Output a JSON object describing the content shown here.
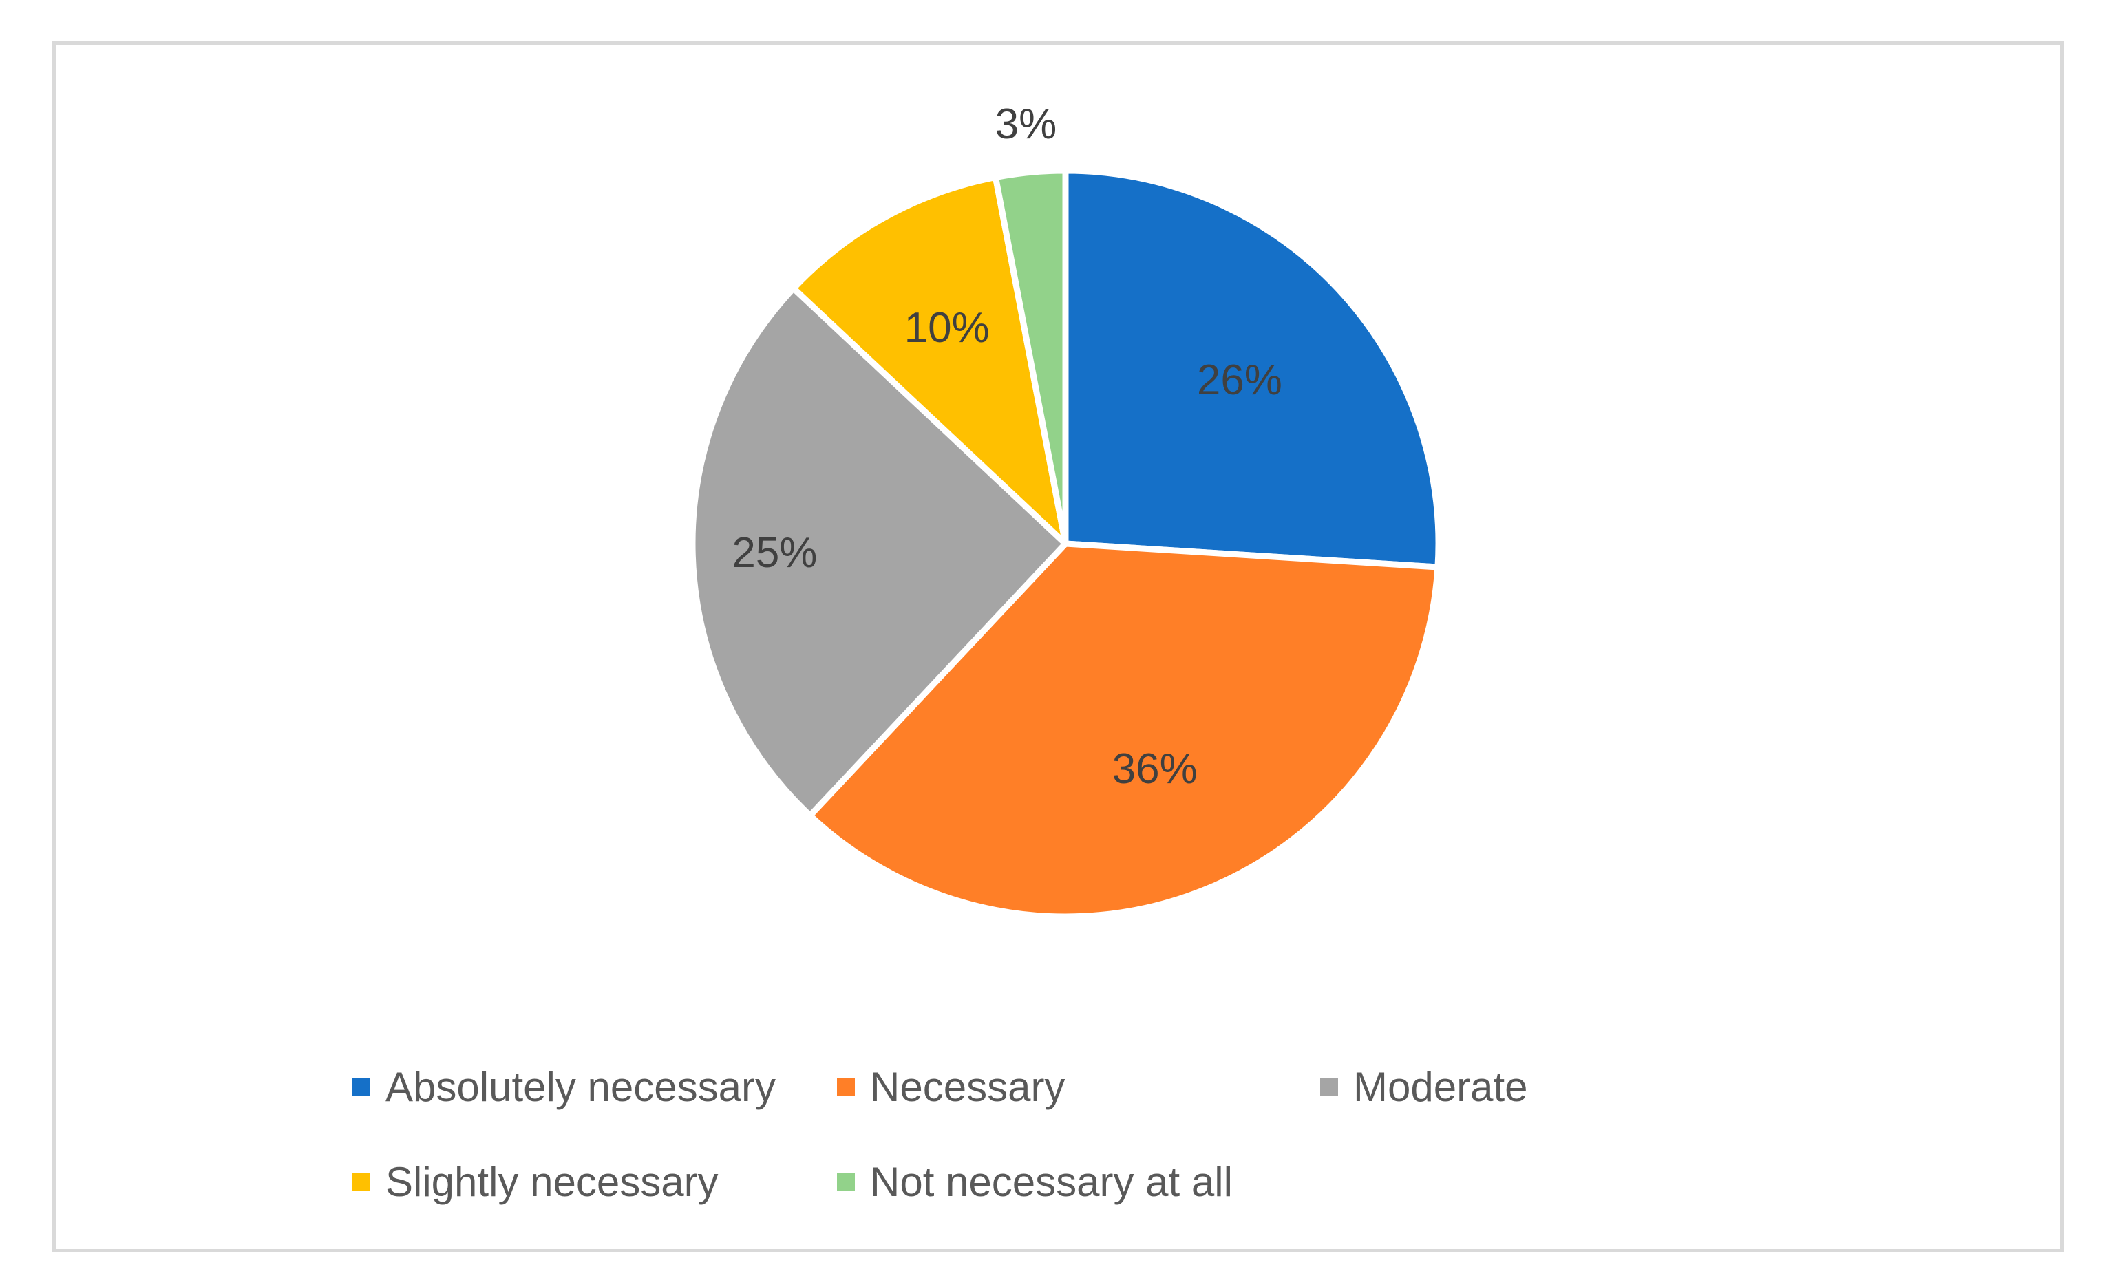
{
  "chart_data": {
    "type": "pie",
    "title": "",
    "slices": [
      {
        "name": "Absolutely necessary",
        "value": 26,
        "label": "26%",
        "color": "#1570C8"
      },
      {
        "name": "Necessary",
        "value": 36,
        "label": "36%",
        "color": "#FF7F27"
      },
      {
        "name": "Moderate",
        "value": 25,
        "label": "25%",
        "color": "#A5A5A5"
      },
      {
        "name": "Slightly necessary",
        "value": 10,
        "label": "10%",
        "color": "#FFC000"
      },
      {
        "name": "Not necessary at all",
        "value": 3,
        "label": "3%",
        "color": "#92D28A"
      }
    ],
    "legend_position": "bottom",
    "start_angle": "12 o'clock",
    "direction": "clockwise"
  }
}
